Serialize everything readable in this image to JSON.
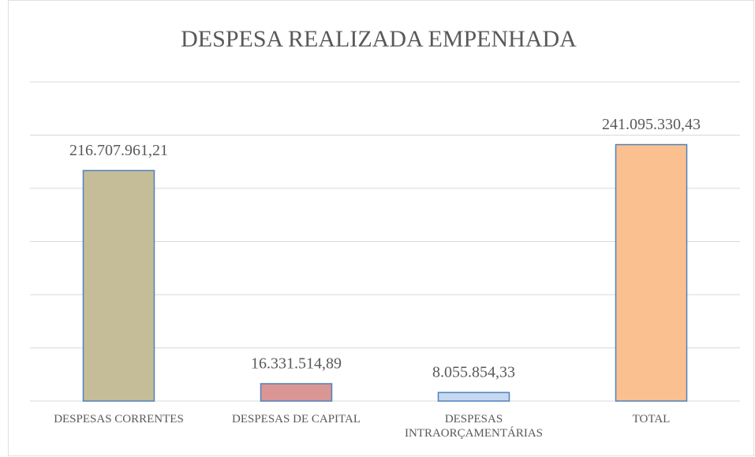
{
  "chart_data": {
    "type": "bar",
    "title": "DESPESA REALIZADA EMPENHADA",
    "categories": [
      "DESPESAS CORRENTES",
      "DESPESAS DE CAPITAL",
      "DESPESAS INTRAORÇAMENTÁRIAS",
      "TOTAL"
    ],
    "values": [
      216707961.21,
      16331514.89,
      8055854.33,
      241095330.43
    ],
    "value_labels": [
      "216.707.961,21",
      "16.331.514,89",
      "8.055.854,33",
      "241.095.330,43"
    ],
    "colors": [
      "#c4bd97",
      "#d99694",
      "#c6d9f1",
      "#fac090"
    ],
    "edge_color": "#4f81bd",
    "ylim": [
      0,
      300000000
    ],
    "yticks": [
      0,
      50000000,
      100000000,
      150000000,
      200000000,
      250000000,
      300000000
    ],
    "grid": true
  }
}
